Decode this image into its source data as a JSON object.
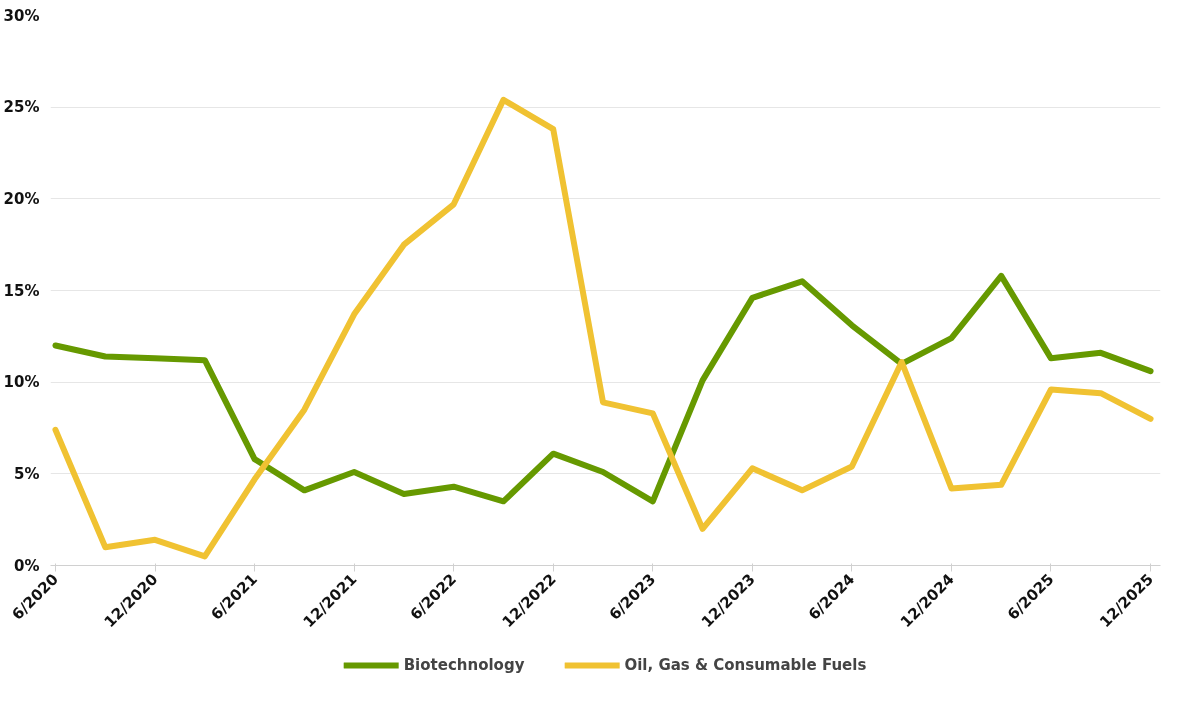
{
  "chart_data": {
    "type": "line",
    "categories": [
      "6/2020",
      null,
      "12/2020",
      null,
      "6/2021",
      null,
      "12/2021",
      null,
      "6/2022",
      null,
      "12/2022",
      null,
      "6/2023",
      null,
      "12/2023",
      null,
      "6/2024",
      null,
      "12/2024",
      null,
      "6/2025",
      null,
      "12/2025"
    ],
    "series": [
      {
        "name": "Biotechnology",
        "color": "#669900",
        "values": [
          12.0,
          11.4,
          11.3,
          11.2,
          5.8,
          4.1,
          5.1,
          3.9,
          4.3,
          3.5,
          6.1,
          5.1,
          3.5,
          10.1,
          14.6,
          15.5,
          13.1,
          11.0,
          12.4,
          15.8,
          11.3,
          11.6,
          10.6
        ]
      },
      {
        "name": "Oil, Gas & Consumable Fuels",
        "color": "#f0c232",
        "values": [
          7.4,
          1.0,
          1.4,
          0.5,
          4.7,
          8.5,
          13.7,
          17.5,
          19.7,
          25.4,
          23.8,
          8.9,
          8.3,
          2.0,
          5.3,
          4.1,
          5.4,
          11.1,
          4.2,
          4.4,
          9.6,
          9.4,
          8.0
        ]
      }
    ],
    "ylim": [
      0,
      30
    ],
    "yticks": [
      {
        "value": 0,
        "label": "0%"
      },
      {
        "value": 5,
        "label": "5%"
      },
      {
        "value": 10,
        "label": "10%"
      },
      {
        "value": 15,
        "label": "15%"
      },
      {
        "value": 20,
        "label": "20%"
      },
      {
        "value": 25,
        "label": "25%"
      },
      {
        "value": 30,
        "label": "30%"
      }
    ],
    "grid": "y",
    "legend": "bottom",
    "line_style": "solid",
    "marker": "none"
  }
}
